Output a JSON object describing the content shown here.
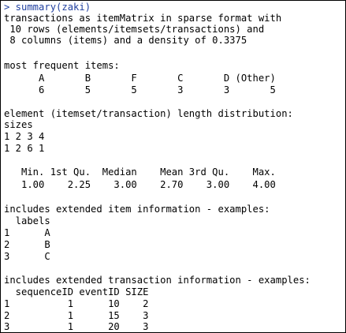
{
  "console": {
    "prompt": "> summary(zaki)",
    "intro": [
      "transactions as itemMatrix in sparse format with",
      " 10 rows (elements/itemsets/transactions) and",
      " 8 columns (items) and a density of 0.3375"
    ],
    "frequent": {
      "heading": "most frequent items:",
      "header_row": "      A       B       F       C       D (Other)",
      "value_row": "      6       5       5       3       3       5"
    },
    "length": {
      "heading": "element (itemset/transaction) length distribution:",
      "sizes_label": "sizes",
      "sizes_row": "1 2 3 4",
      "counts_row": "1 2 6 1",
      "stats_header": "   Min. 1st Qu.  Median    Mean 3rd Qu.    Max.",
      "stats_values": "   1.00    2.25    3.00    2.70    3.00    4.00"
    },
    "item_info": {
      "heading": "includes extended item information - examples:",
      "header": "  labels",
      "rows": [
        "1      A",
        "2      B",
        "3      C"
      ]
    },
    "transaction_info": {
      "heading": "includes extended transaction information - examples:",
      "header": "  sequenceID eventID SIZE",
      "rows": [
        "1          1      10    2",
        "2          1      15    3",
        "3          1      20    3"
      ]
    },
    "colors": {
      "input": "#1f3f9f",
      "output": "#000000",
      "background": "#ffffff"
    }
  }
}
